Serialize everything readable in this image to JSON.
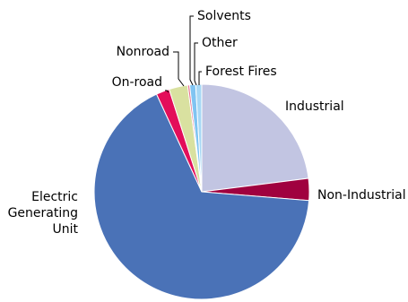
{
  "chart_data": {
    "type": "pie",
    "title": "",
    "grid": false,
    "legend": "none",
    "slices": [
      {
        "label": "Industrial",
        "value": 23.0,
        "color": "#C2C5E2"
      },
      {
        "label": "Non-Industrial",
        "value": 3.3,
        "color": "#A0013F"
      },
      {
        "label": "Electric Generating Unit",
        "label_lines": [
          "Electric",
          "Generating",
          "Unit"
        ],
        "value": 66.8,
        "color": "#4A72B7"
      },
      {
        "label": "On-road",
        "value": 2.0,
        "color": "#E30E5A"
      },
      {
        "label": "Nonroad",
        "value": 2.8,
        "color": "#D9E1A0"
      },
      {
        "label": "Solvents",
        "value": 0.3,
        "color": "#E86A8C"
      },
      {
        "label": "Other",
        "value": 0.9,
        "color": "#80C4F2"
      },
      {
        "label": "Forest Fires",
        "value": 0.9,
        "color": "#A7D8F5"
      }
    ]
  }
}
